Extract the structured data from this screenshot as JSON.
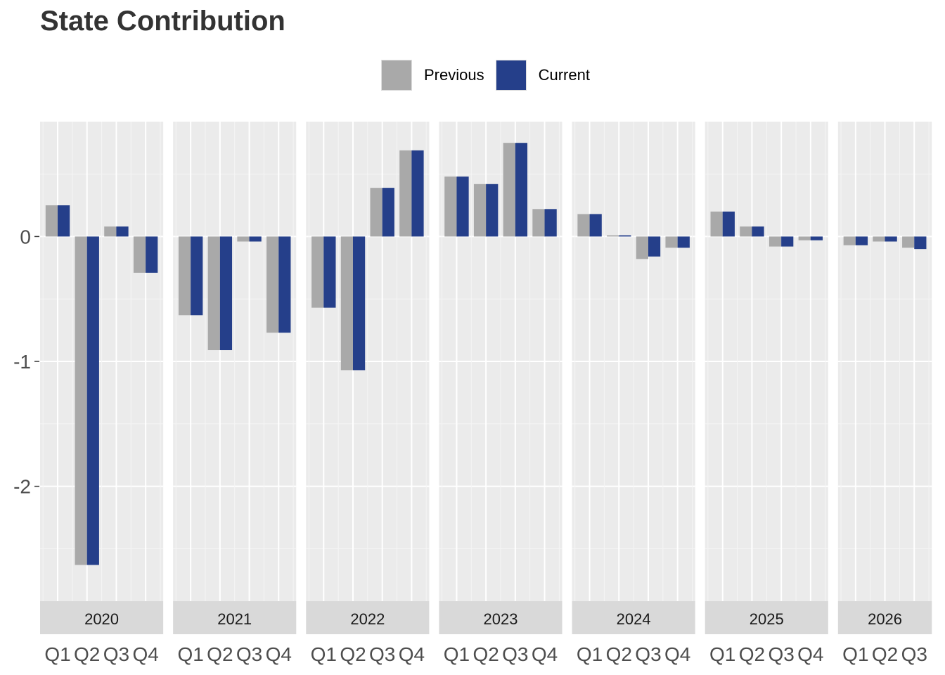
{
  "chart_data": {
    "type": "bar",
    "title": "State Contribution",
    "xlabel": "",
    "ylabel": "",
    "ylim": [
      -2.92,
      0.92
    ],
    "yticks": [
      0,
      -1,
      -2
    ],
    "ytick_labels": [
      "0",
      "-1",
      "-2"
    ],
    "legend_position": "top",
    "grid": true,
    "series": [
      {
        "name": "Previous",
        "color": "#A9A9A9"
      },
      {
        "name": "Current",
        "color": "#253F8A"
      }
    ],
    "panels": [
      {
        "label": "2020",
        "quarters": [
          "Q1",
          "Q2",
          "Q3",
          "Q4"
        ],
        "previous": [
          0.25,
          -2.63,
          0.08,
          -0.29
        ],
        "current": [
          0.25,
          -2.63,
          0.08,
          -0.29
        ]
      },
      {
        "label": "2021",
        "quarters": [
          "Q1",
          "Q2",
          "Q3",
          "Q4"
        ],
        "previous": [
          -0.63,
          -0.91,
          -0.04,
          -0.77
        ],
        "current": [
          -0.63,
          -0.91,
          -0.04,
          -0.77
        ]
      },
      {
        "label": "2022",
        "quarters": [
          "Q1",
          "Q2",
          "Q3",
          "Q4"
        ],
        "previous": [
          -0.57,
          -1.07,
          0.39,
          0.69
        ],
        "current": [
          -0.57,
          -1.07,
          0.39,
          0.69
        ]
      },
      {
        "label": "2023",
        "quarters": [
          "Q1",
          "Q2",
          "Q3",
          "Q4"
        ],
        "previous": [
          0.48,
          0.42,
          0.75,
          0.22
        ],
        "current": [
          0.48,
          0.42,
          0.75,
          0.22
        ]
      },
      {
        "label": "2024",
        "quarters": [
          "Q1",
          "Q2",
          "Q3",
          "Q4"
        ],
        "previous": [
          0.18,
          0.01,
          -0.18,
          -0.09
        ],
        "current": [
          0.18,
          0.01,
          -0.16,
          -0.09
        ]
      },
      {
        "label": "2025",
        "quarters": [
          "Q1",
          "Q2",
          "Q3",
          "Q4"
        ],
        "previous": [
          0.2,
          0.08,
          -0.08,
          -0.03
        ],
        "current": [
          0.2,
          0.08,
          -0.08,
          -0.03
        ]
      },
      {
        "label": "2026",
        "quarters": [
          "Q1",
          "Q2",
          "Q3"
        ],
        "previous": [
          -0.07,
          -0.04,
          -0.09
        ],
        "current": [
          -0.07,
          -0.04,
          -0.1
        ]
      }
    ]
  }
}
